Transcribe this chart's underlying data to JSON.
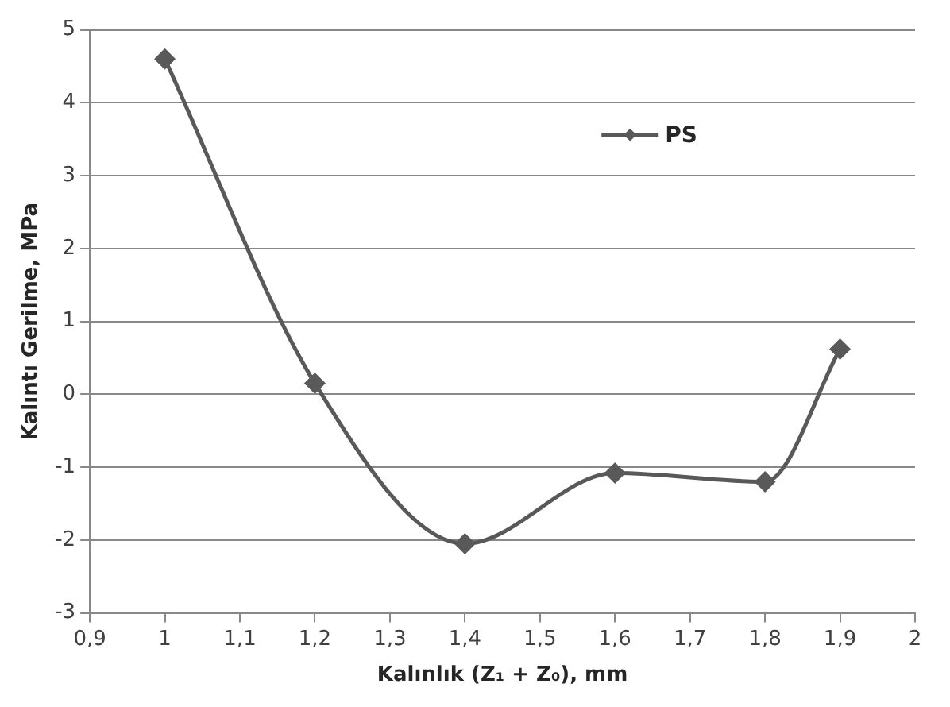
{
  "chart_data": {
    "type": "line",
    "xlabel": "Kalınlık (Z₁ + Z₀), mm",
    "ylabel": "Kalıntı Gerilme, MPa",
    "x": [
      1,
      1.2,
      1.4,
      1.6,
      1.8,
      1.9
    ],
    "series": [
      {
        "name": "PS",
        "color": "#595959",
        "values": [
          4.6,
          0.15,
          -2.05,
          -1.08,
          -1.2,
          0.62
        ]
      }
    ],
    "xlim": [
      0.9,
      2
    ],
    "xticks": [
      {
        "value": 0.9,
        "label": "0,9"
      },
      1,
      {
        "value": 1.1,
        "label": "1,1"
      },
      {
        "value": 1.2,
        "label": "1,2"
      },
      {
        "value": 1.3,
        "label": "1,3"
      },
      {
        "value": 1.4,
        "label": "1,4"
      },
      {
        "value": 1.5,
        "label": "1,5"
      },
      {
        "value": 1.6,
        "label": "1,6"
      },
      {
        "value": 1.7,
        "label": "1,7"
      },
      {
        "value": 1.8,
        "label": "1,8"
      },
      {
        "value": 1.9,
        "label": "1,9"
      },
      2
    ],
    "ylim": [
      -3,
      5
    ],
    "yticks": [
      -3,
      -2,
      -1,
      0,
      1,
      2,
      3,
      4,
      5
    ],
    "grid": "y",
    "legend": "top right",
    "marker": "diamond",
    "line_style": "solid"
  }
}
